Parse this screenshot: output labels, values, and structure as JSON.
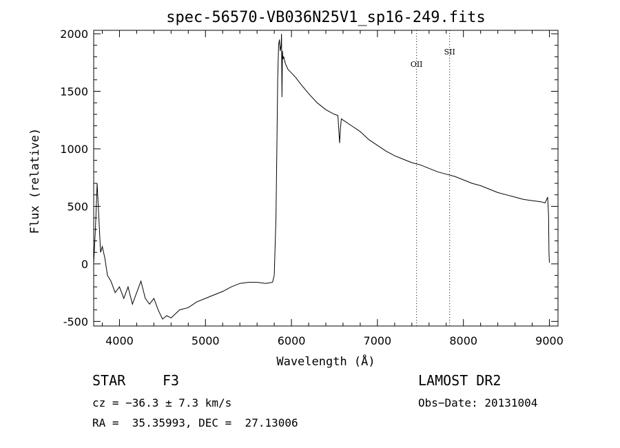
{
  "chart_data": {
    "type": "line",
    "title": "spec-56570-VB036N25V1_sp16-249.fits",
    "xlabel": "Wavelength (Å)",
    "ylabel": "Flux (relative)",
    "xlim": [
      3700,
      9100
    ],
    "ylim": [
      -540,
      2030
    ],
    "x_ticks": [
      4000,
      5000,
      6000,
      7000,
      8000,
      9000
    ],
    "y_ticks": [
      -500,
      0,
      500,
      1000,
      1500,
      2000
    ],
    "grid": false,
    "color": "#000000",
    "series": [
      {
        "x": [
          3700,
          3720,
          3740,
          3760,
          3780,
          3800,
          3830,
          3860,
          3900,
          3950,
          4000,
          4050,
          4100,
          4150,
          4200,
          4250,
          4300,
          4350,
          4400,
          4450,
          4500,
          4550,
          4600,
          4700,
          4800,
          4900,
          5000,
          5100,
          5200,
          5300,
          5400,
          5500,
          5600,
          5700,
          5780,
          5800,
          5820,
          5830,
          5840,
          5850,
          5860,
          5870,
          5880,
          5885,
          5890,
          5895,
          5900,
          5910,
          5930,
          5960,
          6000,
          6050,
          6100,
          6200,
          6300,
          6400,
          6500,
          6540,
          6560,
          6570,
          6580,
          6600,
          6700,
          6800,
          6900,
          7000,
          7100,
          7200,
          7300,
          7400,
          7500,
          7600,
          7700,
          7800,
          7900,
          8000,
          8100,
          8200,
          8300,
          8400,
          8500,
          8600,
          8700,
          8800,
          8900,
          8950,
          8980,
          8990,
          8995,
          9000
        ],
        "y": [
          10,
          300,
          700,
          400,
          100,
          150,
          50,
          -100,
          -150,
          -250,
          -200,
          -300,
          -200,
          -350,
          -250,
          -150,
          -300,
          -350,
          -300,
          -400,
          -480,
          -450,
          -470,
          -400,
          -380,
          -330,
          -300,
          -270,
          -240,
          -200,
          -170,
          -160,
          -160,
          -170,
          -160,
          -100,
          400,
          1000,
          1600,
          1900,
          1950,
          1850,
          1900,
          2000,
          1450,
          1850,
          1780,
          1800,
          1740,
          1690,
          1660,
          1620,
          1570,
          1480,
          1400,
          1340,
          1300,
          1290,
          1050,
          1180,
          1260,
          1250,
          1200,
          1150,
          1080,
          1030,
          980,
          940,
          910,
          880,
          860,
          830,
          800,
          780,
          760,
          730,
          700,
          680,
          650,
          620,
          600,
          580,
          560,
          550,
          540,
          530,
          580,
          420,
          100,
          10
        ]
      }
    ],
    "annotations": [
      {
        "label": "OII",
        "x": 7455
      },
      {
        "label": "SII",
        "x": 7840
      }
    ]
  },
  "footer": {
    "object_type": "STAR",
    "subclass": "F3",
    "cz": "cz = −36.3 ± 7.3 km/s",
    "coords": "RA =  35.35993, DEC =  27.13006",
    "survey": "LAMOST DR2",
    "obs_date": "Obs−Date: 20131004"
  }
}
